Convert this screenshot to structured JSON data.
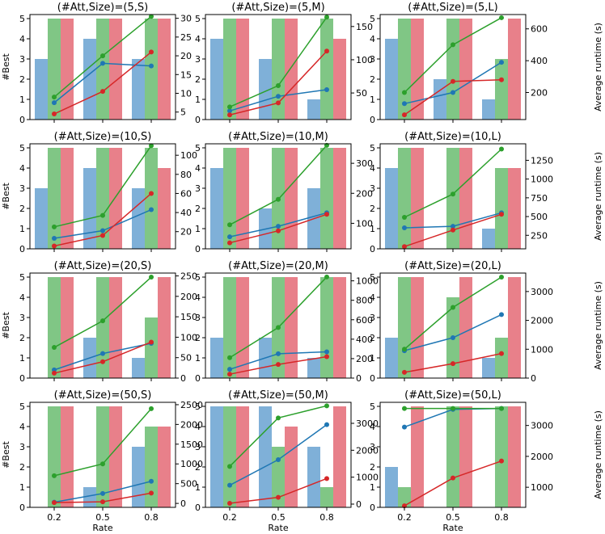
{
  "figure": {
    "ylabel_left": "#Best",
    "ylabel_right": "Average runtime (s)",
    "xlabel": "Rate",
    "x_categories": [
      "0.2",
      "0.5",
      "0.8"
    ]
  },
  "chart_data": [
    {
      "type": "bar+line",
      "title": "(#Att,Size)=(5,S)",
      "bars": {
        "blue": [
          3,
          4,
          3
        ],
        "green": [
          5,
          5,
          5
        ],
        "red": [
          5,
          5,
          5
        ]
      },
      "ylim_left": [
        0,
        5.2
      ],
      "right_axis": {
        "ylim": [
          3,
          31
        ],
        "ticks": [
          5,
          10,
          15,
          20,
          25,
          30
        ]
      },
      "lines": {
        "blue": [
          7.5,
          18,
          17.3
        ],
        "green": [
          9,
          20,
          30.5
        ],
        "red": [
          4.5,
          10.5,
          21
        ]
      }
    },
    {
      "type": "bar+line",
      "title": "(#Att,Size)=(5,M)",
      "bars": {
        "blue": [
          4,
          3,
          1
        ],
        "green": [
          5,
          5,
          5
        ],
        "red": [
          5,
          5,
          4
        ]
      },
      "ylim_left": [
        0,
        5.2
      ],
      "right_axis": {
        "ylim": [
          10,
          168
        ],
        "ticks": [
          50,
          100,
          150
        ]
      },
      "lines": {
        "blue": [
          23,
          45,
          55
        ],
        "green": [
          29,
          61,
          164
        ],
        "red": [
          17,
          35,
          113
        ]
      }
    },
    {
      "type": "bar+line",
      "title": "(#Att,Size)=(5,L)",
      "bars": {
        "blue": [
          4,
          2,
          1
        ],
        "green": [
          5,
          5,
          3
        ],
        "red": [
          5,
          5,
          5
        ]
      },
      "ylim_left": [
        0,
        5.2
      ],
      "right_axis": {
        "ylim": [
          30,
          690
        ],
        "ticks": [
          200,
          400,
          600
        ]
      },
      "lines": {
        "blue": [
          130,
          200,
          390
        ],
        "green": [
          200,
          500,
          670
        ],
        "red": [
          60,
          270,
          280
        ]
      }
    },
    {
      "type": "bar+line",
      "title": "(#Att,Size)=(10,S)",
      "bars": {
        "blue": [
          3,
          4,
          3
        ],
        "green": [
          5,
          5,
          5
        ],
        "red": [
          5,
          5,
          4
        ]
      },
      "ylim_left": [
        0,
        5.2
      ],
      "right_axis": {
        "ylim": [
          2,
          112
        ],
        "ticks": [
          20,
          40,
          60,
          80,
          100
        ]
      },
      "lines": {
        "blue": [
          13,
          21,
          43
        ],
        "green": [
          25,
          37,
          110
        ],
        "red": [
          5,
          16,
          60
        ]
      }
    },
    {
      "type": "bar+line",
      "title": "(#Att,Size)=(10,M)",
      "bars": {
        "blue": [
          4,
          2,
          3
        ],
        "green": [
          5,
          5,
          5
        ],
        "red": [
          5,
          5,
          5
        ]
      },
      "ylim_left": [
        0,
        5.2
      ],
      "right_axis": {
        "ylim": [
          15,
          365
        ],
        "ticks": [
          100,
          200,
          300
        ]
      },
      "lines": {
        "blue": [
          55,
          90,
          135
        ],
        "green": [
          95,
          180,
          360
        ],
        "red": [
          35,
          75,
          130
        ]
      }
    },
    {
      "type": "bar+line",
      "title": "(#Att,Size)=(10,L)",
      "bars": {
        "blue": [
          4,
          0,
          1
        ],
        "green": [
          5,
          5,
          4
        ],
        "red": [
          5,
          5,
          4
        ]
      },
      "ylim_left": [
        0,
        5.2
      ],
      "right_axis": {
        "ylim": [
          70,
          1470
        ],
        "ticks": [
          250,
          500,
          750,
          1000,
          1250
        ]
      },
      "lines": {
        "blue": [
          350,
          370,
          550
        ],
        "green": [
          490,
          800,
          1400
        ],
        "red": [
          100,
          320,
          530
        ]
      }
    },
    {
      "type": "bar+line",
      "title": "(#Att,Size)=(20,S)",
      "bars": {
        "blue": [
          0,
          2,
          1
        ],
        "green": [
          5,
          5,
          3
        ],
        "red": [
          5,
          5,
          5
        ]
      },
      "ylim_left": [
        0,
        5.2
      ],
      "right_axis": {
        "ylim": [
          0,
          257
        ],
        "ticks": [
          0,
          50,
          100,
          150,
          200,
          250
        ]
      },
      "lines": {
        "blue": [
          20,
          60,
          85
        ],
        "green": [
          75,
          140,
          247
        ],
        "red": [
          12,
          40,
          88
        ]
      }
    },
    {
      "type": "bar+line",
      "title": "(#Att,Size)=(20,M)",
      "bars": {
        "blue": [
          2,
          2,
          1
        ],
        "green": [
          5,
          5,
          5
        ],
        "red": [
          5,
          5,
          5
        ]
      },
      "ylim_left": [
        0,
        5.2
      ],
      "right_axis": {
        "ylim": [
          0,
          1080
        ],
        "ticks": [
          0,
          200,
          400,
          600,
          800,
          1000
        ]
      },
      "lines": {
        "blue": [
          90,
          250,
          270
        ],
        "green": [
          210,
          520,
          1040
        ],
        "red": [
          40,
          140,
          220
        ]
      }
    },
    {
      "type": "bar+line",
      "title": "(#Att,Size)=(20,L)",
      "bars": {
        "blue": [
          2,
          0,
          1
        ],
        "green": [
          5,
          4,
          2
        ],
        "red": [
          5,
          5,
          5
        ]
      },
      "ylim_left": [
        0,
        5.2
      ],
      "right_axis": {
        "ylim": [
          0,
          3640
        ],
        "ticks": [
          0,
          1000,
          2000,
          3000
        ]
      },
      "lines": {
        "blue": [
          950,
          1400,
          2200
        ],
        "green": [
          1000,
          2450,
          3500
        ],
        "red": [
          200,
          500,
          850
        ]
      }
    },
    {
      "type": "bar+line",
      "title": "(#Att,Size)=(50,S)",
      "bars": {
        "blue": [
          0,
          1,
          3
        ],
        "green": [
          5,
          5,
          4
        ],
        "red": [
          5,
          5,
          4
        ]
      },
      "ylim_left": [
        0,
        5.2
      ],
      "right_axis": {
        "ylim": [
          -100,
          2560
        ],
        "ticks": [
          0,
          500,
          1000,
          1500,
          2000,
          2500
        ]
      },
      "lines": {
        "blue": [
          30,
          250,
          560
        ],
        "green": [
          700,
          1000,
          2400
        ],
        "red": [
          20,
          40,
          260
        ]
      }
    },
    {
      "type": "bar+line",
      "title": "(#Att,Size)=(50,M)",
      "bars": {
        "blue": [
          5,
          5,
          3
        ],
        "green": [
          5,
          3,
          1
        ],
        "red": [
          5,
          4,
          5
        ]
      },
      "ylim_left": [
        0,
        5.2
      ],
      "right_axis": {
        "ylim": [
          -120,
          3780
        ],
        "ticks": [
          0,
          1000,
          2000,
          3000
        ]
      },
      "lines": {
        "blue": [
          700,
          1650,
          2950
        ],
        "green": [
          1400,
          3200,
          3650
        ],
        "red": [
          30,
          250,
          950
        ]
      }
    },
    {
      "type": "bar+line",
      "title": "(#Att,Size)=(50,L)",
      "bars": {
        "blue": [
          2,
          0,
          0
        ],
        "green": [
          1,
          5,
          5
        ],
        "red": [
          5,
          5,
          5
        ]
      },
      "ylim_left": [
        0,
        5.2
      ],
      "right_axis": {
        "ylim": [
          350,
          3750
        ],
        "ticks": [
          1000,
          2000,
          3000
        ]
      },
      "lines": {
        "blue": [
          2950,
          3520,
          3550
        ],
        "green": [
          3550,
          3550,
          3550
        ],
        "red": [
          400,
          1300,
          1850
        ]
      }
    }
  ],
  "colors": {
    "blue_bar": "#7fb0d8",
    "green_bar": "#80c685",
    "red_bar": "#e8808a",
    "blue_line": "#1f77b4",
    "green_line": "#2ca02c",
    "red_line": "#d62728"
  }
}
